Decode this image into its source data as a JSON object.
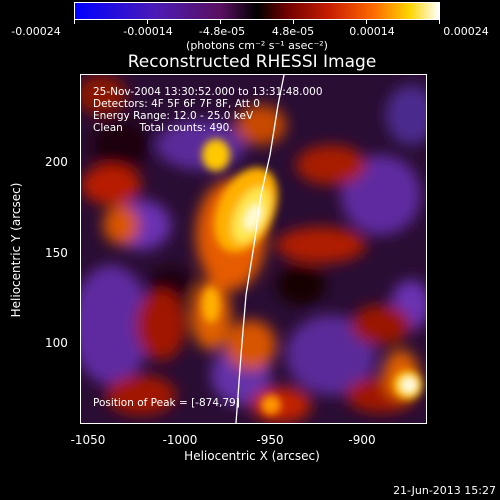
{
  "colorbar": {
    "tick_labels": [
      "-0.00024",
      "-0.00014",
      "-4.8e-05",
      "4.8e-05",
      "0.00014",
      "0.00024"
    ],
    "units": "(photons cm⁻² s⁻¹ asec⁻²)"
  },
  "title": "Reconstructed RHESSI Image",
  "info": {
    "line1": "25-Nov-2004 13:30:52.000 to 13:31:48.000",
    "line2": "Detectors: 4F 5F 6F 7F 8F, Att 0",
    "line3": "Energy Range: 12.0 - 25.0 keV",
    "line4": "Clean     Total counts: 490.",
    "peak": "Position of Peak = [-874,79]"
  },
  "axes": {
    "xlabel": "Heliocentric X (arcsec)",
    "ylabel": "Heliocentric Y (arcsec)",
    "xticks": [
      "-1050",
      "-1000",
      "-950",
      "-900"
    ],
    "yticks": [
      "200",
      "150",
      "100"
    ]
  },
  "timestamp": "21-Jun-2013 15:27"
}
